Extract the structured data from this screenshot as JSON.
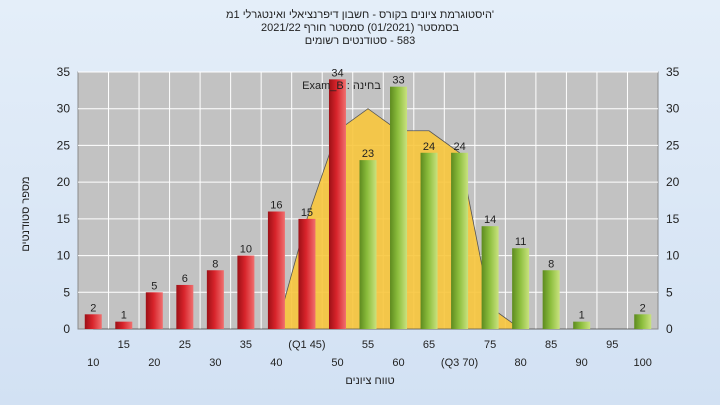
{
  "chart_data": {
    "type": "bar",
    "title": "'היסטוגרמת ציונים בקורס - חשבון דיפרנציאלי ואינטגרלי 1מ",
    "subtitle_1": "בסמסטר  (01/2021)  סמסטר חורף  2021/22",
    "subtitle_2": "583 - סטודנטים רשומים",
    "ylabel": "מספר סטודנטים",
    "xlabel": "טווח ציונים",
    "ylim": [
      0,
      35
    ],
    "yticks": [
      "0",
      "5",
      "10",
      "15",
      "20",
      "25",
      "30",
      "35"
    ],
    "grid": true,
    "categories": [
      "10",
      "15",
      "20",
      "25",
      "30",
      "35",
      "40",
      "(Q1 45)",
      "50",
      "55",
      "60",
      "65",
      "(Q3 70)",
      "75",
      "80",
      "85",
      "90",
      "95",
      "100"
    ],
    "values": [
      2,
      1,
      5,
      6,
      8,
      10,
      16,
      15,
      34,
      23,
      33,
      24,
      24,
      14,
      11,
      8,
      1,
      0,
      2
    ],
    "value_labels": [
      "2",
      "1",
      "5",
      "6",
      "8",
      "10",
      "16",
      "15",
      "34",
      "23",
      "33",
      "24",
      "24",
      "14",
      "11",
      "8",
      "1",
      "",
      "2"
    ],
    "bar_colors": [
      "red",
      "red",
      "red",
      "red",
      "red",
      "red",
      "red",
      "red",
      "red",
      "green",
      "green",
      "green",
      "green",
      "green",
      "green",
      "green",
      "green",
      "green",
      "green"
    ],
    "colors": {
      "red": "#d8242b",
      "green": "#8bbd3c",
      "overlay": "#f8c63d",
      "plot_bg": "#c2c2c2"
    },
    "overlay_series": {
      "name": "Exam_B : בחינה",
      "values": [
        0,
        0,
        0,
        0,
        0,
        0,
        0,
        15,
        27,
        30,
        27,
        27,
        24,
        3,
        0,
        0,
        0,
        0,
        0
      ]
    }
  }
}
